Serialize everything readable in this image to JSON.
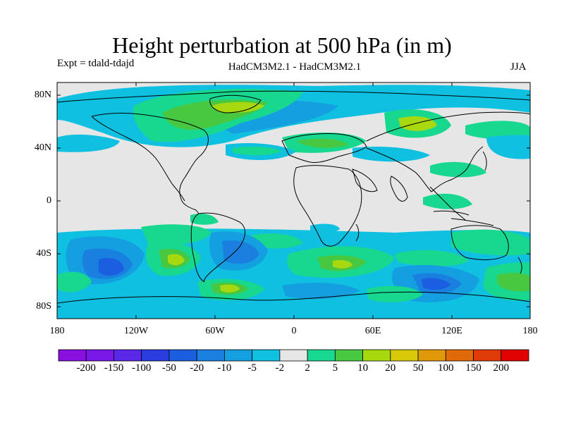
{
  "title": "Height perturbation at 500 hPa (in m)",
  "experiment_label": "Expt = tdald-tdajd",
  "subtitle": "HadCM3M2.1 - HadCM3M2.1",
  "season": "JJA",
  "lat_ticks": [
    "80N",
    "40N",
    "0",
    "40S",
    "80S"
  ],
  "lon_ticks": [
    "180",
    "120W",
    "60W",
    "0",
    "60E",
    "120E",
    "180"
  ],
  "colorbar": {
    "colors": [
      "#8a10e0",
      "#7a18e8",
      "#5a28e8",
      "#2a3ee0",
      "#1c5ee0",
      "#1a80e0",
      "#14a0e0",
      "#10c0e0",
      "#e6e6e6",
      "#18d890",
      "#48c840",
      "#a8d810",
      "#d8c808",
      "#e09808",
      "#e06a08",
      "#e03a08",
      "#e00000"
    ],
    "labels": [
      "-200",
      "-150",
      "-100",
      "-50",
      "-20",
      "-10",
      "-5",
      "-2",
      "2",
      "5",
      "10",
      "20",
      "50",
      "100",
      "150",
      "200"
    ]
  },
  "map_colors": {
    "ocean_bg": "#e6e6e6",
    "neg_weak": "#10c0e0",
    "neg_mid": "#14a0e0",
    "neg_strong": "#1a80e0",
    "neg_stronger": "#1c5ee0",
    "pos_weak": "#18d890",
    "pos_mid": "#48c840",
    "pos_strong": "#a8d810"
  }
}
